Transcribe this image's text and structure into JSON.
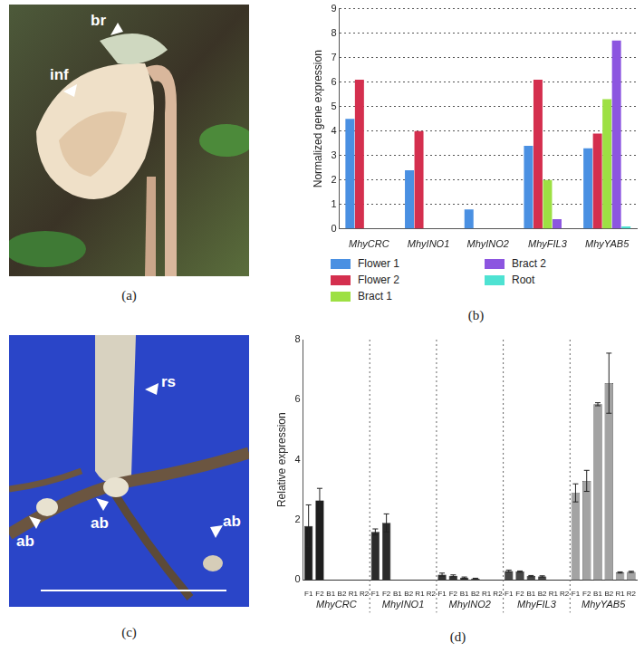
{
  "images": [
    {
      "caption": "(a)",
      "labels": [
        "br",
        "inf"
      ]
    },
    {
      "caption": "(c)",
      "labels": [
        "rs",
        "ab",
        "ab",
        "ab"
      ]
    }
  ],
  "chart_data": [
    {
      "type": "bar",
      "caption": "(b)",
      "categories": [
        "MhyCRC",
        "MhyINO1",
        "MhyINO2",
        "MhyFIL3",
        "MhyYAB5"
      ],
      "y_label": "Normalized gene expression",
      "series": [
        {
          "name": "Flower 1",
          "color": "#4a90e2",
          "values": [
            4.5,
            2.4,
            0.8,
            3.4,
            3.3
          ]
        },
        {
          "name": "Flower 2",
          "color": "#d42f4e",
          "values": [
            6.1,
            4.0,
            0,
            6.1,
            3.9
          ]
        },
        {
          "name": "Bract 1",
          "color": "#9de043",
          "values": [
            0,
            0,
            0,
            2.0,
            5.3
          ]
        },
        {
          "name": "Bract 2",
          "color": "#8c55e0",
          "values": [
            0,
            0,
            0,
            0.4,
            7.7
          ]
        },
        {
          "name": "Root",
          "color": "#4ee2d2",
          "values": [
            0,
            0,
            0,
            0,
            0.1
          ]
        }
      ],
      "ylim": [
        0,
        9
      ],
      "yticks": [
        0,
        1,
        2,
        3,
        4,
        5,
        6,
        7,
        8,
        9
      ],
      "grid": true,
      "legend": "bottom"
    },
    {
      "type": "bar",
      "caption": "(d)",
      "y_label": "Relative expression",
      "groups": [
        {
          "name": "MhyCRC",
          "color": "#1e1e1e",
          "categories": [
            "F1",
            "F2",
            "B1",
            "B2",
            "R1",
            "R2"
          ],
          "values": [
            1.8,
            2.65,
            0,
            0,
            0,
            0
          ],
          "errors": [
            0.7,
            0.4,
            0,
            0,
            0,
            0
          ]
        },
        {
          "name": "MhyINO1",
          "color": "#2b2b2b",
          "categories": [
            "F1",
            "F2",
            "B1",
            "B2",
            "R1",
            "R2"
          ],
          "values": [
            1.6,
            1.9,
            0,
            0,
            0,
            0
          ],
          "errors": [
            0.1,
            0.3,
            0,
            0,
            0,
            0
          ]
        },
        {
          "name": "MhyINO2",
          "color": "#333333",
          "categories": [
            "F1",
            "F2",
            "B1",
            "B2",
            "R1",
            "R2"
          ],
          "values": [
            0.18,
            0.14,
            0.08,
            0.05,
            0,
            0
          ],
          "errors": [
            0.05,
            0.03,
            0.02,
            0.01,
            0,
            0
          ]
        },
        {
          "name": "MhyFIL3",
          "color": "#474747",
          "categories": [
            "F1",
            "F2",
            "B1",
            "B2",
            "R1",
            "R2"
          ],
          "values": [
            0.3,
            0.28,
            0.13,
            0.12,
            0,
            0
          ],
          "errors": [
            0.03,
            0.02,
            0.02,
            0.02,
            0,
            0
          ]
        },
        {
          "name": "MhyYAB5",
          "color": "#a3a3a3",
          "categories": [
            "F1",
            "F2",
            "B1",
            "B2",
            "R1",
            "R2"
          ],
          "values": [
            2.9,
            3.3,
            5.85,
            6.55,
            0.25,
            0.27
          ],
          "errors": [
            0.3,
            0.35,
            0.05,
            1.0,
            0.02,
            0.02
          ]
        }
      ],
      "ylim": [
        0,
        8
      ],
      "yticks": [
        0,
        2,
        4,
        6,
        8
      ],
      "grid": false
    }
  ]
}
